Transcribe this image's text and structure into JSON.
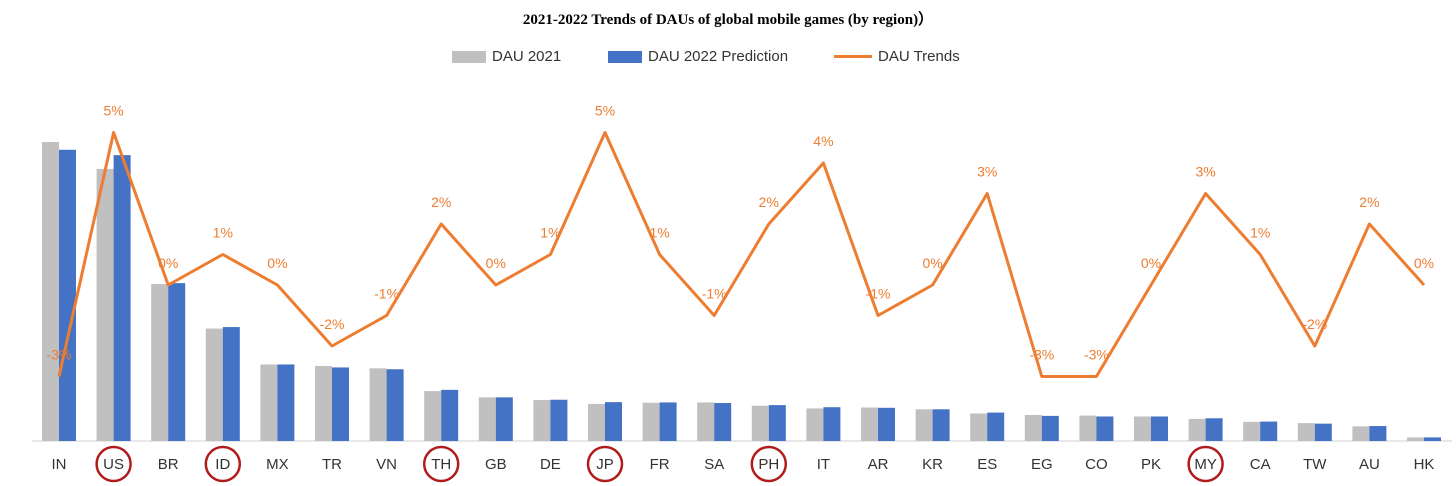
{
  "chart_data": {
    "type": "bar",
    "title": "2021-2022 Trends of DAUs of global mobile games (by region)）",
    "categories": [
      "IN",
      "US",
      "BR",
      "ID",
      "MX",
      "TR",
      "VN",
      "TH",
      "GB",
      "DE",
      "JP",
      "FR",
      "SA",
      "PH",
      "IT",
      "AR",
      "KR",
      "ES",
      "EG",
      "CO",
      "PK",
      "MY",
      "CA",
      "TW",
      "AU",
      "HK"
    ],
    "highlighted_categories": [
      "US",
      "ID",
      "TH",
      "JP",
      "PH",
      "MY"
    ],
    "series": [
      {
        "name": "DAU 2021",
        "kind": "bar",
        "color": "#c0c0c0",
        "values": [
          100,
          91,
          52.5,
          37.6,
          25.6,
          25.1,
          24.3,
          16.7,
          14.6,
          13.7,
          12.4,
          12.8,
          12.9,
          11.8,
          10.9,
          11.2,
          10.6,
          9.2,
          8.7,
          8.5,
          8.2,
          7.4,
          6.4,
          6.0,
          4.9,
          1.2
        ]
      },
      {
        "name": "DAU 2022 Prediction",
        "kind": "bar",
        "color": "#4472c4",
        "values": [
          97.4,
          95.6,
          52.8,
          38.1,
          25.6,
          24.6,
          24.0,
          17.1,
          14.6,
          13.8,
          13.0,
          12.9,
          12.7,
          12.0,
          11.3,
          11.1,
          10.6,
          9.5,
          8.4,
          8.2,
          8.2,
          7.6,
          6.5,
          5.8,
          5.0,
          1.2
        ]
      },
      {
        "name": "DAU  Trends",
        "kind": "line",
        "color": "#ed7d31",
        "values": [
          -3,
          5,
          0,
          1,
          0,
          -2,
          -1,
          2,
          0,
          1,
          5,
          1,
          -1,
          2,
          4,
          -1,
          0,
          3,
          -3,
          -3,
          0,
          3,
          1,
          -2,
          2,
          0
        ],
        "labels": [
          "-3%",
          "5%",
          "0%",
          "1%",
          "0%",
          "-2%",
          "-1%",
          "2%",
          "0%",
          "1%",
          "5%",
          "1%",
          "-1%",
          "2%",
          "4%",
          "-1%",
          "0%",
          "3%",
          "-3%",
          "-3%",
          "0%",
          "3%",
          "1%",
          "-2%",
          "2%",
          "0%"
        ]
      }
    ],
    "grid": false,
    "legend_position": "top-center"
  }
}
